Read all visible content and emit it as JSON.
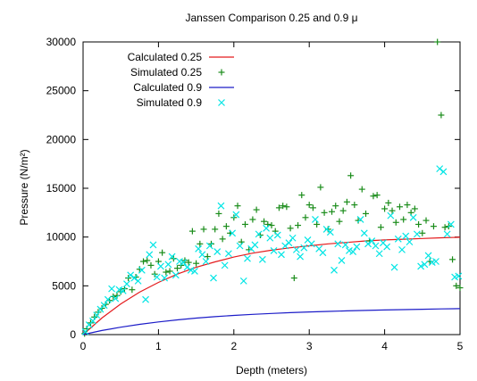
{
  "chart_data": {
    "type": "scatter",
    "title": "Janssen Comparison 0.25 and 0.9 μ",
    "xlabel": "Depth (meters)",
    "ylabel": "Pressure (N/m²)",
    "xlim": [
      0,
      5
    ],
    "ylim": [
      0,
      30000
    ],
    "xticks": [
      0,
      1,
      2,
      3,
      4,
      5
    ],
    "yticks": [
      0,
      5000,
      10000,
      15000,
      20000,
      25000,
      30000
    ],
    "legend_position": "top-left",
    "grid": false,
    "series": [
      {
        "name": "Calculated 0.25",
        "kind": "line",
        "color": "#e41a1c",
        "x": [
          0,
          0.25,
          0.5,
          0.75,
          1,
          1.25,
          1.5,
          1.75,
          2,
          2.25,
          2.5,
          2.75,
          3,
          3.25,
          3.5,
          3.75,
          4,
          4.25,
          4.5,
          4.75,
          5
        ],
        "y": [
          0,
          1700,
          3150,
          4350,
          5350,
          6200,
          6900,
          7450,
          7950,
          8350,
          8650,
          8900,
          9100,
          9300,
          9450,
          9600,
          9700,
          9780,
          9850,
          9920,
          9980
        ]
      },
      {
        "name": "Simulated 0.25",
        "kind": "plus",
        "color": "#1a8c1a",
        "x": [
          0.02,
          0.05,
          0.1,
          0.15,
          0.2,
          0.25,
          0.3,
          0.35,
          0.4,
          0.45,
          0.5,
          0.55,
          0.6,
          0.65,
          0.7,
          0.75,
          0.8,
          0.85,
          0.9,
          0.95,
          1.0,
          1.05,
          1.1,
          1.15,
          1.2,
          1.25,
          1.3,
          1.35,
          1.4,
          1.45,
          1.5,
          1.55,
          1.6,
          1.65,
          1.7,
          1.75,
          1.8,
          1.85,
          1.9,
          1.95,
          2.0,
          2.05,
          2.1,
          2.15,
          2.2,
          2.25,
          2.3,
          2.35,
          2.4,
          2.45,
          2.5,
          2.55,
          2.6,
          2.65,
          2.7,
          2.75,
          2.8,
          2.85,
          2.9,
          2.95,
          3.0,
          3.05,
          3.1,
          3.15,
          3.2,
          3.25,
          3.3,
          3.35,
          3.4,
          3.45,
          3.5,
          3.55,
          3.6,
          3.65,
          3.7,
          3.75,
          3.8,
          3.85,
          3.9,
          3.95,
          4.0,
          4.05,
          4.1,
          4.15,
          4.2,
          4.25,
          4.3,
          4.35,
          4.4,
          4.45,
          4.5,
          4.55,
          4.6,
          4.65,
          4.7,
          4.75,
          4.8,
          4.85,
          4.9,
          4.95,
          5.0
        ],
        "y": [
          100,
          600,
          1200,
          1800,
          2300,
          2700,
          3100,
          3500,
          3900,
          4000,
          4400,
          4700,
          5800,
          4600,
          5900,
          6700,
          7500,
          7600,
          7100,
          6200,
          7500,
          8400,
          6400,
          6500,
          7800,
          6800,
          7100,
          7600,
          7400,
          10600,
          7300,
          9300,
          10800,
          8000,
          9300,
          10800,
          12400,
          9800,
          11100,
          10400,
          12000,
          13200,
          9500,
          11300,
          8700,
          11800,
          12800,
          10200,
          11600,
          11300,
          11200,
          10600,
          13000,
          13200,
          13100,
          10900,
          5800,
          11200,
          14300,
          12000,
          13300,
          13000,
          11300,
          15100,
          12500,
          10800,
          12600,
          13200,
          11600,
          12700,
          13600,
          16300,
          13300,
          11700,
          14900,
          12400,
          9600,
          14200,
          14300,
          11000,
          12900,
          13500,
          12700,
          11500,
          13100,
          11800,
          13300,
          12500,
          12900,
          11300,
          10400,
          11700,
          7500,
          11100,
          30000,
          22500,
          11000,
          11100,
          7700,
          5000,
          4800
        ]
      },
      {
        "name": "Calculated 0.9",
        "kind": "line",
        "color": "#1c1cc8",
        "x": [
          0,
          0.25,
          0.5,
          0.75,
          1,
          1.25,
          1.5,
          1.75,
          2,
          2.25,
          2.5,
          2.75,
          3,
          3.25,
          3.5,
          3.75,
          4,
          4.25,
          4.5,
          4.75,
          5
        ],
        "y": [
          0,
          420,
          760,
          1050,
          1300,
          1510,
          1690,
          1840,
          1970,
          2080,
          2170,
          2250,
          2320,
          2380,
          2430,
          2480,
          2520,
          2560,
          2600,
          2630,
          2660
        ]
      },
      {
        "name": "Simulated 0.9",
        "kind": "cross",
        "color": "#00e5e5",
        "x": [
          0.03,
          0.08,
          0.13,
          0.18,
          0.23,
          0.28,
          0.33,
          0.38,
          0.43,
          0.48,
          0.53,
          0.58,
          0.63,
          0.68,
          0.73,
          0.78,
          0.83,
          0.88,
          0.93,
          0.98,
          1.03,
          1.08,
          1.13,
          1.18,
          1.23,
          1.28,
          1.33,
          1.38,
          1.43,
          1.48,
          1.53,
          1.58,
          1.63,
          1.68,
          1.73,
          1.78,
          1.83,
          1.88,
          1.93,
          1.98,
          2.03,
          2.08,
          2.13,
          2.18,
          2.23,
          2.28,
          2.33,
          2.38,
          2.43,
          2.48,
          2.53,
          2.58,
          2.63,
          2.68,
          2.73,
          2.78,
          2.83,
          2.88,
          2.93,
          2.98,
          3.03,
          3.08,
          3.13,
          3.18,
          3.23,
          3.28,
          3.33,
          3.38,
          3.43,
          3.48,
          3.53,
          3.58,
          3.63,
          3.68,
          3.73,
          3.78,
          3.83,
          3.88,
          3.93,
          3.98,
          4.03,
          4.08,
          4.13,
          4.18,
          4.23,
          4.28,
          4.33,
          4.38,
          4.43,
          4.48,
          4.53,
          4.58,
          4.63,
          4.68,
          4.73,
          4.78,
          4.83,
          4.88,
          4.93,
          4.98
        ],
        "y": [
          300,
          1000,
          1400,
          2000,
          2600,
          3000,
          3600,
          4700,
          3700,
          4600,
          4500,
          5200,
          6100,
          5800,
          5500,
          6600,
          3600,
          8200,
          9200,
          5900,
          7000,
          5800,
          7200,
          8000,
          6100,
          7500,
          7400,
          6900,
          6600,
          6500,
          8800,
          8200,
          7500,
          9100,
          5800,
          8500,
          13200,
          7100,
          8300,
          10400,
          12300,
          9100,
          5500,
          7800,
          8800,
          9200,
          10300,
          7700,
          10900,
          9900,
          8600,
          10200,
          8200,
          9100,
          9400,
          9900,
          8700,
          8000,
          8900,
          9700,
          9300,
          11800,
          8800,
          8400,
          10800,
          10500,
          6600,
          9300,
          7600,
          9200,
          8600,
          8500,
          9000,
          11800,
          10400,
          9300,
          9600,
          9100,
          8300,
          9400,
          9000,
          12200,
          6900,
          9800,
          8700,
          10100,
          9500,
          12000,
          10300,
          7000,
          7200,
          8100,
          7400,
          7500,
          17000,
          16700,
          10300,
          11300,
          5900,
          6000
        ]
      }
    ]
  }
}
